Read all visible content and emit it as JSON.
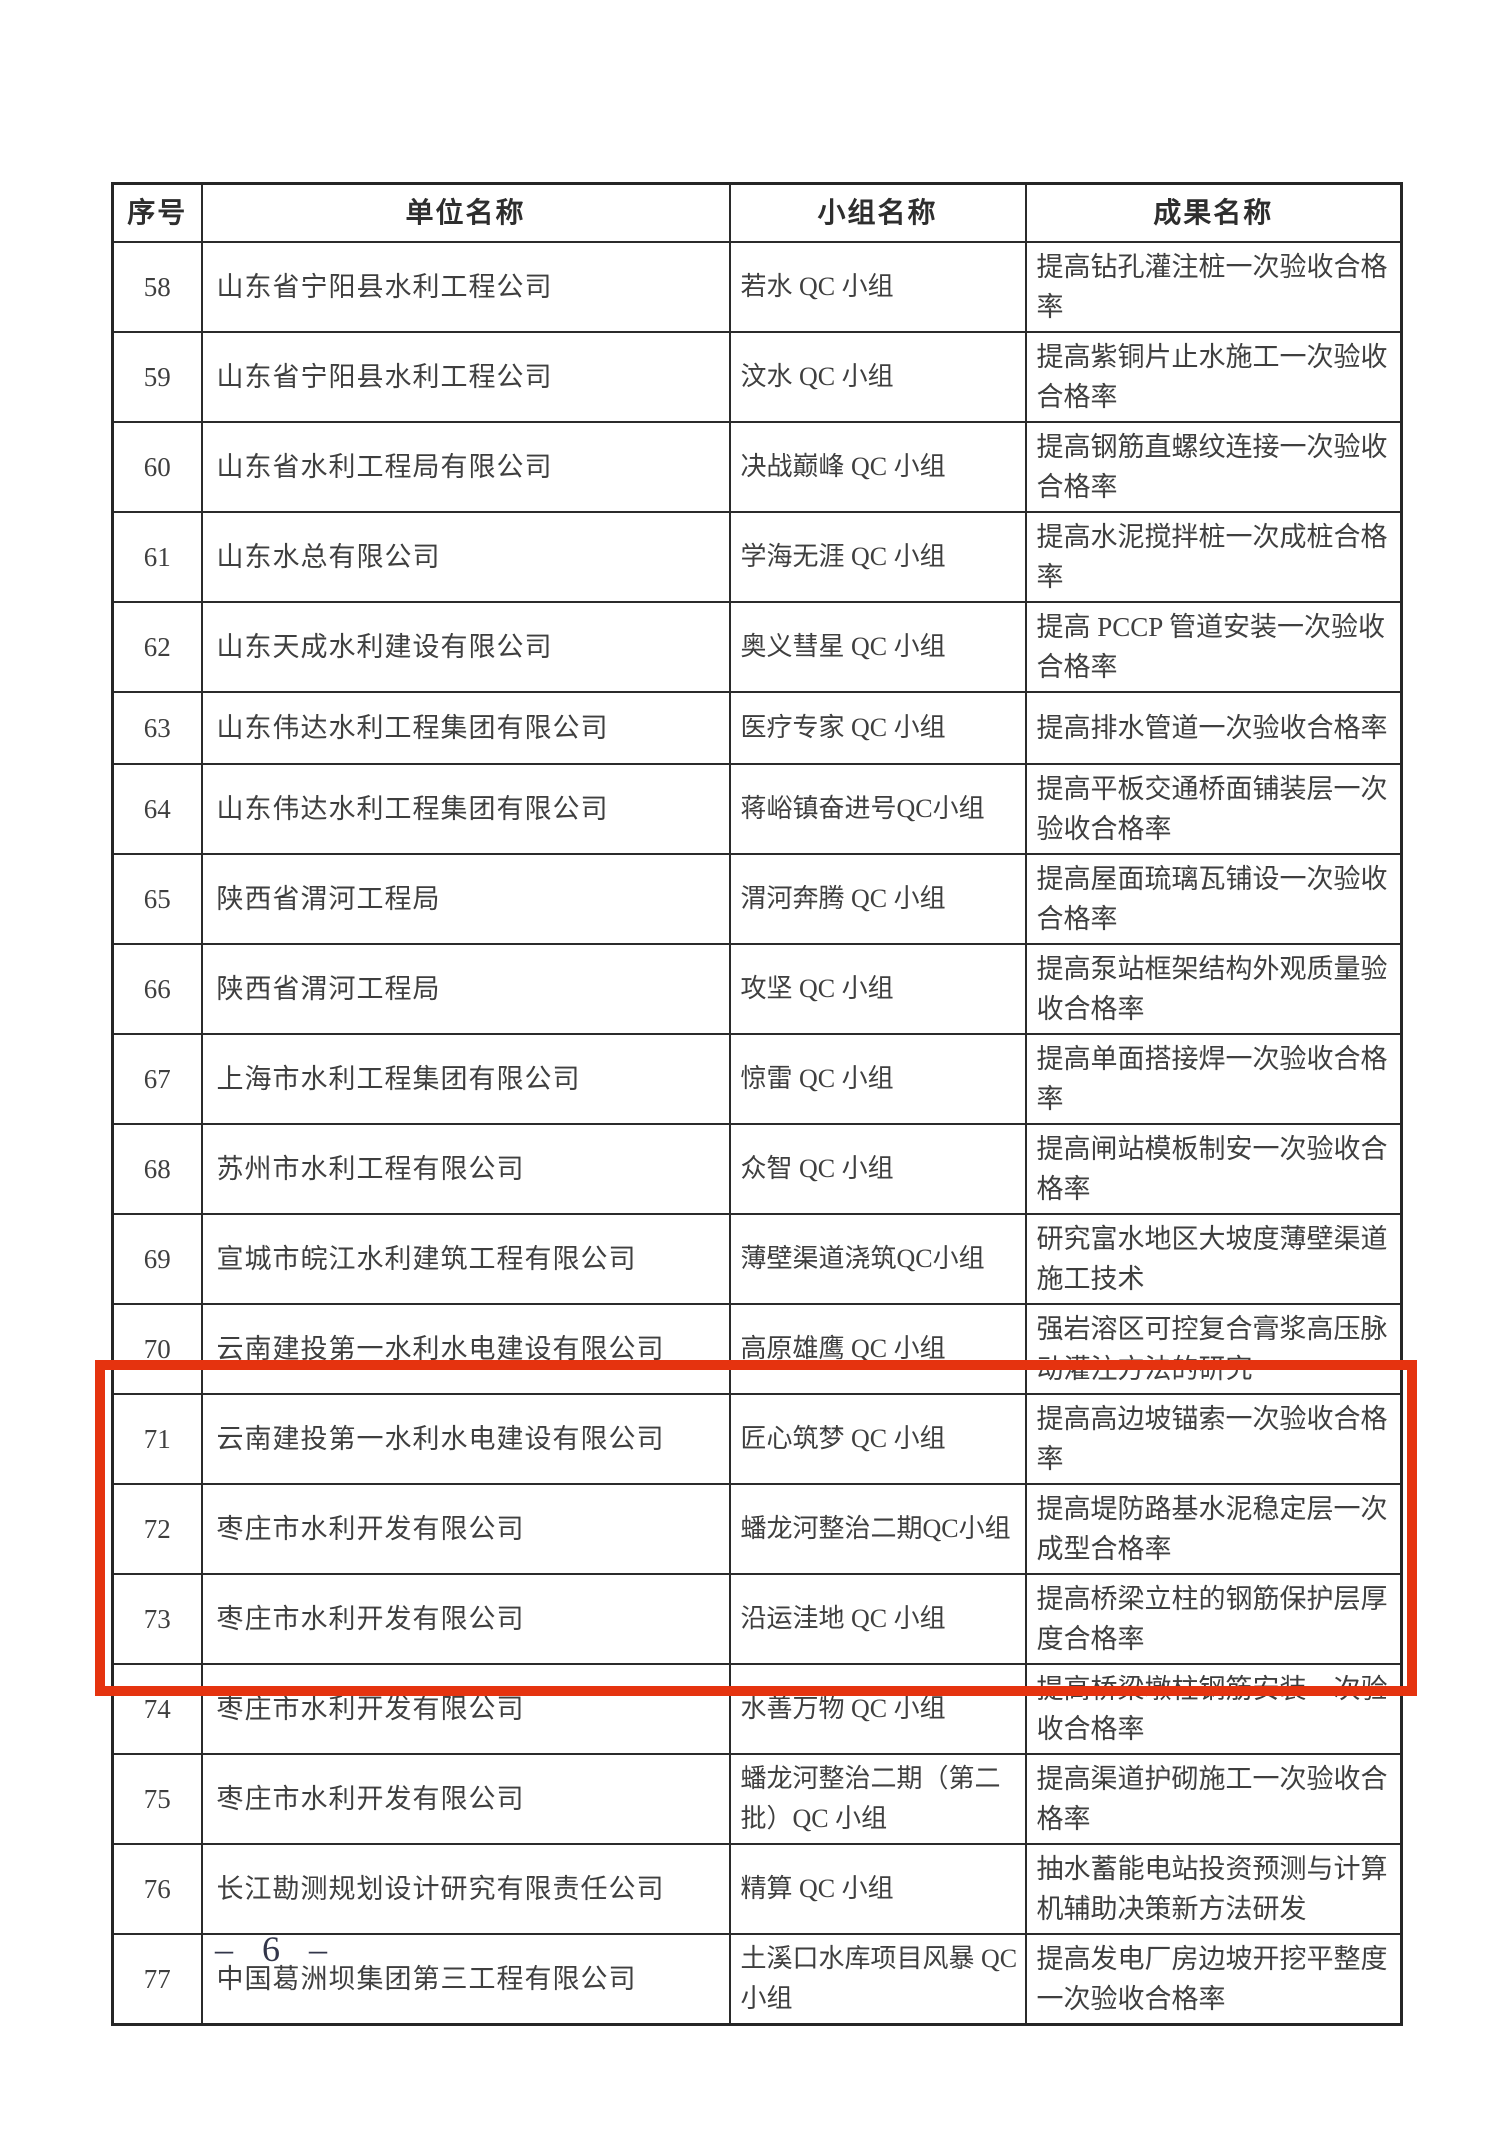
{
  "table": {
    "headers": [
      "序号",
      "单位名称",
      "小组名称",
      "成果名称"
    ],
    "rows": [
      {
        "no": "58",
        "unit": "山东省宁阳县水利工程公司",
        "group": "若水 QC 小组",
        "result": "提高钻孔灌注桩一次验收合格率",
        "highlighted": false
      },
      {
        "no": "59",
        "unit": "山东省宁阳县水利工程公司",
        "group": "汶水 QC 小组",
        "result": "提高紫铜片止水施工一次验收合格率",
        "highlighted": false
      },
      {
        "no": "60",
        "unit": "山东省水利工程局有限公司",
        "group": "决战巅峰 QC 小组",
        "result": "提高钢筋直螺纹连接一次验收合格率",
        "highlighted": false
      },
      {
        "no": "61",
        "unit": "山东水总有限公司",
        "group": "学海无涯 QC 小组",
        "result": "提高水泥搅拌桩一次成桩合格率",
        "highlighted": false
      },
      {
        "no": "62",
        "unit": "山东天成水利建设有限公司",
        "group": "奥义彗星 QC 小组",
        "result": "提高 PCCP 管道安装一次验收合格率",
        "highlighted": false
      },
      {
        "no": "63",
        "unit": "山东伟达水利工程集团有限公司",
        "group": "医疗专家 QC 小组",
        "result": "提高排水管道一次验收合格率",
        "highlighted": false
      },
      {
        "no": "64",
        "unit": "山东伟达水利工程集团有限公司",
        "group": "蒋峪镇奋进号QC小组",
        "result": "提高平板交通桥面铺装层一次验收合格率",
        "highlighted": false
      },
      {
        "no": "65",
        "unit": "陕西省渭河工程局",
        "group": "渭河奔腾 QC 小组",
        "result": "提高屋面琉璃瓦铺设一次验收合格率",
        "highlighted": false
      },
      {
        "no": "66",
        "unit": "陕西省渭河工程局",
        "group": "攻坚 QC 小组",
        "result": "提高泵站框架结构外观质量验收合格率",
        "highlighted": false
      },
      {
        "no": "67",
        "unit": "上海市水利工程集团有限公司",
        "group": "惊雷 QC 小组",
        "result": "提高单面搭接焊一次验收合格率",
        "highlighted": false
      },
      {
        "no": "68",
        "unit": "苏州市水利工程有限公司",
        "group": "众智 QC 小组",
        "result": "提高闸站模板制安一次验收合格率",
        "highlighted": false
      },
      {
        "no": "69",
        "unit": "宣城市皖江水利建筑工程有限公司",
        "group": "薄壁渠道浇筑QC小组",
        "result": "研究富水地区大坡度薄壁渠道施工技术",
        "highlighted": false
      },
      {
        "no": "70",
        "unit": "云南建投第一水利水电建设有限公司",
        "group": "高原雄鹰 QC 小组",
        "result": "强岩溶区可控复合膏浆高压脉动灌注方法的研究",
        "highlighted": false
      },
      {
        "no": "71",
        "unit": "云南建投第一水利水电建设有限公司",
        "group": "匠心筑梦 QC 小组",
        "result": "提高高边坡锚索一次验收合格率",
        "highlighted": false
      },
      {
        "no": "72",
        "unit": "枣庄市水利开发有限公司",
        "group": "蟠龙河整治二期QC小组",
        "result": "提高堤防路基水泥稳定层一次成型合格率",
        "highlighted": true
      },
      {
        "no": "73",
        "unit": "枣庄市水利开发有限公司",
        "group": "沿运洼地 QC 小组",
        "result": "提高桥梁立柱的钢筋保护层厚度合格率",
        "highlighted": true
      },
      {
        "no": "74",
        "unit": "枣庄市水利开发有限公司",
        "group": "水善万物 QC 小组",
        "result": "提高桥梁墩柱钢筋安装一次验收合格率",
        "highlighted": true
      },
      {
        "no": "75",
        "unit": "枣庄市水利开发有限公司",
        "group": "蟠龙河整治二期（第二批）QC 小组",
        "result": "提高渠道护砌施工一次验收合格率",
        "highlighted": true
      },
      {
        "no": "76",
        "unit": "长江勘测规划设计研究有限责任公司",
        "group": "精算 QC 小组",
        "result": "抽水蓄能电站投资预测与计算机辅助决策新方法研发",
        "highlighted": false
      },
      {
        "no": "77",
        "unit": "中国葛洲坝集团第三工程有限公司",
        "group": "土溪口水库项目风暴 QC 小组",
        "result": "提高发电厂房边坡开挖平整度一次验收合格率",
        "highlighted": false
      }
    ]
  },
  "highlight": {
    "color": "#e5330f",
    "highlighted_row_numbers": [
      "72",
      "73",
      "74",
      "75"
    ]
  },
  "footer": {
    "page_number": "– 6 –"
  }
}
